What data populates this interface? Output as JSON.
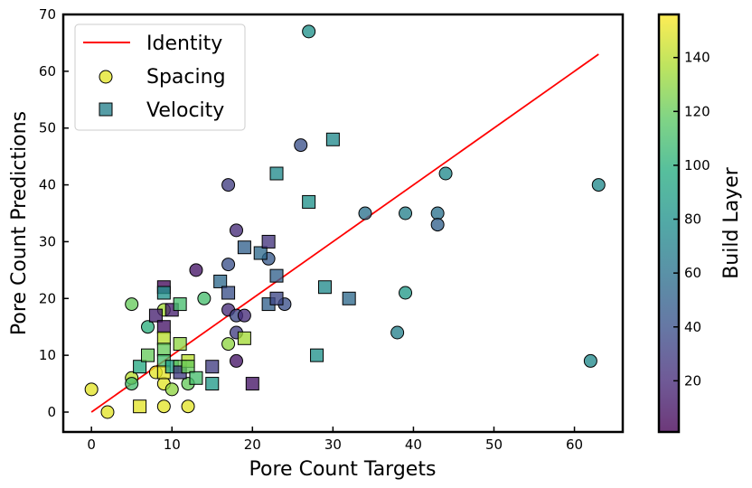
{
  "chart_data": {
    "type": "scatter",
    "xlabel": "Pore Count Targets",
    "ylabel": "Pore Count Predictions",
    "xlim": [
      -3.5,
      66
    ],
    "ylim": [
      -3.5,
      70
    ],
    "xticks": [
      0,
      10,
      20,
      30,
      40,
      50,
      60
    ],
    "yticks": [
      0,
      10,
      20,
      30,
      40,
      50,
      60,
      70
    ],
    "identity": {
      "name": "Identity",
      "from": [
        0,
        0
      ],
      "to": [
        63,
        63
      ],
      "color": "#ff0000"
    },
    "legend": {
      "position": "top-left",
      "entries": [
        "Identity",
        "Spacing",
        "Velocity"
      ]
    },
    "colorbar": {
      "label": "Build Layer",
      "range": [
        1,
        156
      ],
      "ticks": [
        20,
        40,
        60,
        80,
        100,
        120,
        140
      ],
      "colormap": "viridis"
    },
    "series": [
      {
        "name": "Spacing",
        "marker": "circle",
        "points": [
          {
            "x": 0,
            "y": 4,
            "c": 150
          },
          {
            "x": 2,
            "y": 0,
            "c": 150
          },
          {
            "x": 5,
            "y": 6,
            "c": 140
          },
          {
            "x": 5,
            "y": 5,
            "c": 110
          },
          {
            "x": 5,
            "y": 19,
            "c": 120
          },
          {
            "x": 7,
            "y": 15,
            "c": 100
          },
          {
            "x": 8,
            "y": 7,
            "c": 150
          },
          {
            "x": 9,
            "y": 18,
            "c": 135
          },
          {
            "x": 9,
            "y": 5,
            "c": 150
          },
          {
            "x": 9,
            "y": 1,
            "c": 150
          },
          {
            "x": 10,
            "y": 4,
            "c": 130
          },
          {
            "x": 12,
            "y": 1,
            "c": 150
          },
          {
            "x": 12,
            "y": 5,
            "c": 120
          },
          {
            "x": 13,
            "y": 25,
            "c": 10
          },
          {
            "x": 14,
            "y": 20,
            "c": 110
          },
          {
            "x": 17,
            "y": 40,
            "c": 30
          },
          {
            "x": 17,
            "y": 26,
            "c": 40
          },
          {
            "x": 17,
            "y": 18,
            "c": 20
          },
          {
            "x": 17,
            "y": 12,
            "c": 130
          },
          {
            "x": 18,
            "y": 32,
            "c": 20
          },
          {
            "x": 18,
            "y": 17,
            "c": 35
          },
          {
            "x": 18,
            "y": 14,
            "c": 30
          },
          {
            "x": 18,
            "y": 9,
            "c": 10
          },
          {
            "x": 19,
            "y": 17,
            "c": 20
          },
          {
            "x": 22,
            "y": 27,
            "c": 45
          },
          {
            "x": 24,
            "y": 19,
            "c": 40
          },
          {
            "x": 26,
            "y": 47,
            "c": 40
          },
          {
            "x": 27,
            "y": 67,
            "c": 80
          },
          {
            "x": 34,
            "y": 35,
            "c": 60
          },
          {
            "x": 38,
            "y": 14,
            "c": 70
          },
          {
            "x": 39,
            "y": 35,
            "c": 70
          },
          {
            "x": 39,
            "y": 21,
            "c": 85
          },
          {
            "x": 43,
            "y": 35,
            "c": 60
          },
          {
            "x": 43,
            "y": 33,
            "c": 50
          },
          {
            "x": 44,
            "y": 42,
            "c": 75
          },
          {
            "x": 62,
            "y": 9,
            "c": 75
          },
          {
            "x": 63,
            "y": 40,
            "c": 75
          }
        ]
      },
      {
        "name": "Velocity",
        "marker": "square",
        "points": [
          {
            "x": 6,
            "y": 1,
            "c": 150
          },
          {
            "x": 6,
            "y": 8,
            "c": 95
          },
          {
            "x": 7,
            "y": 10,
            "c": 120
          },
          {
            "x": 8,
            "y": 17,
            "c": 15
          },
          {
            "x": 9,
            "y": 22,
            "c": 5
          },
          {
            "x": 9,
            "y": 21,
            "c": 80
          },
          {
            "x": 9,
            "y": 15,
            "c": 10
          },
          {
            "x": 9,
            "y": 13,
            "c": 140
          },
          {
            "x": 9,
            "y": 11,
            "c": 120
          },
          {
            "x": 9,
            "y": 9,
            "c": 110
          },
          {
            "x": 9,
            "y": 7,
            "c": 150
          },
          {
            "x": 10,
            "y": 18,
            "c": 15
          },
          {
            "x": 10,
            "y": 8,
            "c": 90
          },
          {
            "x": 11,
            "y": 19,
            "c": 110
          },
          {
            "x": 11,
            "y": 12,
            "c": 130
          },
          {
            "x": 11,
            "y": 8,
            "c": 120
          },
          {
            "x": 11,
            "y": 7,
            "c": 30
          },
          {
            "x": 12,
            "y": 9,
            "c": 140
          },
          {
            "x": 12,
            "y": 8,
            "c": 120
          },
          {
            "x": 13,
            "y": 6,
            "c": 110
          },
          {
            "x": 15,
            "y": 8,
            "c": 30
          },
          {
            "x": 15,
            "y": 5,
            "c": 85
          },
          {
            "x": 16,
            "y": 23,
            "c": 55
          },
          {
            "x": 17,
            "y": 21,
            "c": 40
          },
          {
            "x": 19,
            "y": 29,
            "c": 50
          },
          {
            "x": 19,
            "y": 13,
            "c": 135
          },
          {
            "x": 20,
            "y": 5,
            "c": 10
          },
          {
            "x": 21,
            "y": 28,
            "c": 55
          },
          {
            "x": 22,
            "y": 30,
            "c": 25
          },
          {
            "x": 22,
            "y": 19,
            "c": 50
          },
          {
            "x": 23,
            "y": 42,
            "c": 75
          },
          {
            "x": 23,
            "y": 24,
            "c": 50
          },
          {
            "x": 23,
            "y": 20,
            "c": 35
          },
          {
            "x": 27,
            "y": 37,
            "c": 80
          },
          {
            "x": 28,
            "y": 10,
            "c": 80
          },
          {
            "x": 29,
            "y": 22,
            "c": 75
          },
          {
            "x": 30,
            "y": 48,
            "c": 75
          },
          {
            "x": 32,
            "y": 20,
            "c": 55
          }
        ]
      }
    ]
  }
}
